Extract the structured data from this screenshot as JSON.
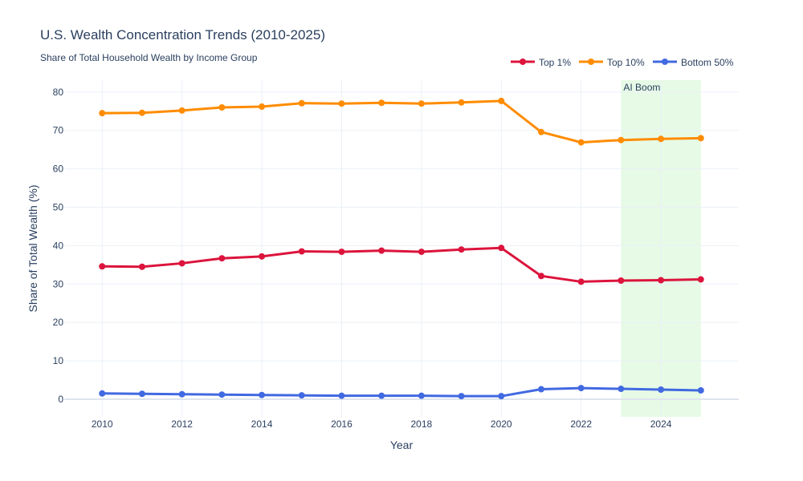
{
  "chart_data": {
    "type": "line",
    "title": "U.S. Wealth Concentration Trends (2010-2025)",
    "subtitle": "Share of Total Household Wealth by Income Group",
    "xlabel": "Year",
    "ylabel": "Share of Total Wealth (%)",
    "xlim": [
      2009.05,
      2025.95
    ],
    "ylim": [
      -4.6,
      83.1
    ],
    "xticks": [
      2010,
      2012,
      2014,
      2016,
      2018,
      2020,
      2022,
      2024
    ],
    "yticks": [
      0,
      10,
      20,
      30,
      40,
      50,
      60,
      70,
      80
    ],
    "grid": true,
    "legend_position": "top-right",
    "x": [
      2010,
      2011,
      2012,
      2013,
      2014,
      2015,
      2016,
      2017,
      2018,
      2019,
      2020,
      2021,
      2022,
      2023,
      2024,
      2025
    ],
    "series": [
      {
        "name": "Top 1%",
        "color": "#dc143c",
        "values": [
          34.6,
          34.5,
          35.4,
          36.7,
          37.2,
          38.5,
          38.4,
          38.7,
          38.4,
          39.0,
          39.4,
          32.1,
          30.6,
          30.9,
          31.0,
          31.2
        ]
      },
      {
        "name": "Top 10%",
        "color": "#ff8c00",
        "values": [
          74.5,
          74.6,
          75.2,
          76.0,
          76.2,
          77.1,
          77.0,
          77.2,
          77.0,
          77.3,
          77.7,
          69.6,
          66.9,
          67.5,
          67.8,
          68.0
        ]
      },
      {
        "name": "Bottom 50%",
        "color": "#4169e1",
        "values": [
          1.5,
          1.4,
          1.3,
          1.2,
          1.1,
          1.0,
          0.9,
          0.9,
          0.9,
          0.8,
          0.8,
          2.6,
          2.9,
          2.7,
          2.5,
          2.3
        ]
      }
    ],
    "annotations": [
      {
        "text": "AI Boom",
        "x_range": [
          2023,
          2025
        ],
        "color": "#e6fae6"
      }
    ]
  }
}
